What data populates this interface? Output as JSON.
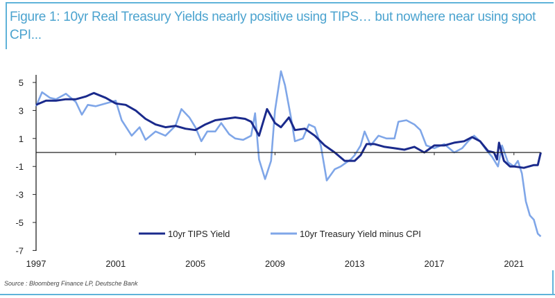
{
  "title": "Figure 1: 10yr Real Treasury Yields nearly positive using TIPS… but nowhere near using spot CPI...",
  "source": "Source : Bloomberg Finance LP, Deutsche Bank",
  "chart_data": {
    "type": "line",
    "title": "Figure 1: 10yr Real Treasury Yields nearly positive using TIPS… but nowhere near using spot CPI...",
    "xlabel": "",
    "ylabel": "",
    "xlim": [
      1997,
      2022.5
    ],
    "ylim": [
      -7,
      6
    ],
    "x_ticks": [
      "1997",
      "2001",
      "2005",
      "2009",
      "2013",
      "2017",
      "2021"
    ],
    "y_ticks": [
      "5",
      "3",
      "1",
      "-1",
      "-3",
      "-5",
      "-7"
    ],
    "grid": false,
    "legend_position": "bottom-center",
    "zero_line": true,
    "series": [
      {
        "name": "10yr TIPS Yield",
        "color": "#1a2a8c",
        "x": [
          1997.0,
          1997.5,
          1998.0,
          1998.5,
          1999.0,
          1999.5,
          1999.9,
          2000.5,
          2001.0,
          2001.5,
          2002.0,
          2002.5,
          2003.0,
          2003.5,
          2004.0,
          2004.5,
          2005.0,
          2005.5,
          2006.0,
          2006.5,
          2007.0,
          2007.5,
          2007.8,
          2008.2,
          2008.6,
          2009.0,
          2009.3,
          2009.7,
          2010.0,
          2010.5,
          2011.0,
          2011.5,
          2012.0,
          2012.5,
          2013.0,
          2013.3,
          2013.6,
          2014.0,
          2014.5,
          2015.0,
          2015.5,
          2016.0,
          2016.5,
          2017.0,
          2017.5,
          2018.0,
          2018.5,
          2018.9,
          2019.3,
          2019.7,
          2020.0,
          2020.15,
          2020.25,
          2020.5,
          2020.8,
          2021.0,
          2021.5,
          2022.0,
          2022.2,
          2022.35
        ],
        "y": [
          3.4,
          3.7,
          3.7,
          3.8,
          3.8,
          4.0,
          4.25,
          3.9,
          3.5,
          3.4,
          3.0,
          2.4,
          2.0,
          1.8,
          1.9,
          1.7,
          1.6,
          2.0,
          2.3,
          2.4,
          2.5,
          2.4,
          2.2,
          1.2,
          3.1,
          2.1,
          1.8,
          2.5,
          1.6,
          1.7,
          1.2,
          0.5,
          0.0,
          -0.6,
          -0.6,
          -0.2,
          0.6,
          0.6,
          0.4,
          0.3,
          0.2,
          0.4,
          0.0,
          0.5,
          0.5,
          0.7,
          0.8,
          1.1,
          0.8,
          0.1,
          0.0,
          -0.5,
          0.7,
          -0.6,
          -1.0,
          -1.0,
          -1.1,
          -0.9,
          -0.9,
          0.0
        ]
      },
      {
        "name": "10yr Treasury Yield minus CPI",
        "color": "#7fa6e8",
        "x": [
          1997.0,
          1997.3,
          1997.7,
          1998.0,
          1998.5,
          1999.0,
          1999.3,
          1999.6,
          2000.0,
          2000.5,
          2001.0,
          2001.3,
          2001.8,
          2002.2,
          2002.5,
          2003.0,
          2003.5,
          2004.0,
          2004.3,
          2004.7,
          2005.0,
          2005.3,
          2005.6,
          2006.0,
          2006.3,
          2006.7,
          2007.0,
          2007.4,
          2007.8,
          2008.0,
          2008.2,
          2008.5,
          2008.8,
          2009.0,
          2009.3,
          2009.5,
          2009.8,
          2010.0,
          2010.4,
          2010.7,
          2011.0,
          2011.3,
          2011.6,
          2012.0,
          2012.3,
          2012.8,
          2013.0,
          2013.3,
          2013.5,
          2013.8,
          2014.2,
          2014.6,
          2015.0,
          2015.2,
          2015.6,
          2016.0,
          2016.3,
          2016.6,
          2017.0,
          2017.5,
          2018.0,
          2018.4,
          2018.7,
          2019.0,
          2019.3,
          2019.6,
          2019.9,
          2020.2,
          2020.4,
          2020.7,
          2021.0,
          2021.2,
          2021.4,
          2021.6,
          2021.8,
          2022.0,
          2022.2,
          2022.35
        ],
        "y": [
          3.3,
          4.3,
          3.9,
          3.8,
          4.2,
          3.6,
          2.7,
          3.4,
          3.3,
          3.5,
          3.7,
          2.3,
          1.2,
          1.8,
          0.9,
          1.5,
          1.2,
          1.9,
          3.1,
          2.5,
          1.8,
          0.8,
          1.5,
          1.5,
          2.1,
          1.3,
          1.0,
          0.9,
          1.2,
          2.8,
          -0.5,
          -1.9,
          -0.6,
          3.0,
          5.8,
          4.8,
          2.5,
          0.8,
          1.0,
          2.0,
          1.8,
          0.5,
          -2.0,
          -1.2,
          -1.0,
          -0.5,
          -0.2,
          0.5,
          1.5,
          0.5,
          1.2,
          1.0,
          1.0,
          2.2,
          2.3,
          2.0,
          1.6,
          0.5,
          0.3,
          0.6,
          0.0,
          0.3,
          0.8,
          1.2,
          0.8,
          0.2,
          -0.3,
          -1.0,
          0.5,
          -0.7,
          -1.0,
          -0.6,
          -1.5,
          -3.5,
          -4.5,
          -4.8,
          -5.8,
          -6.0
        ]
      }
    ]
  }
}
